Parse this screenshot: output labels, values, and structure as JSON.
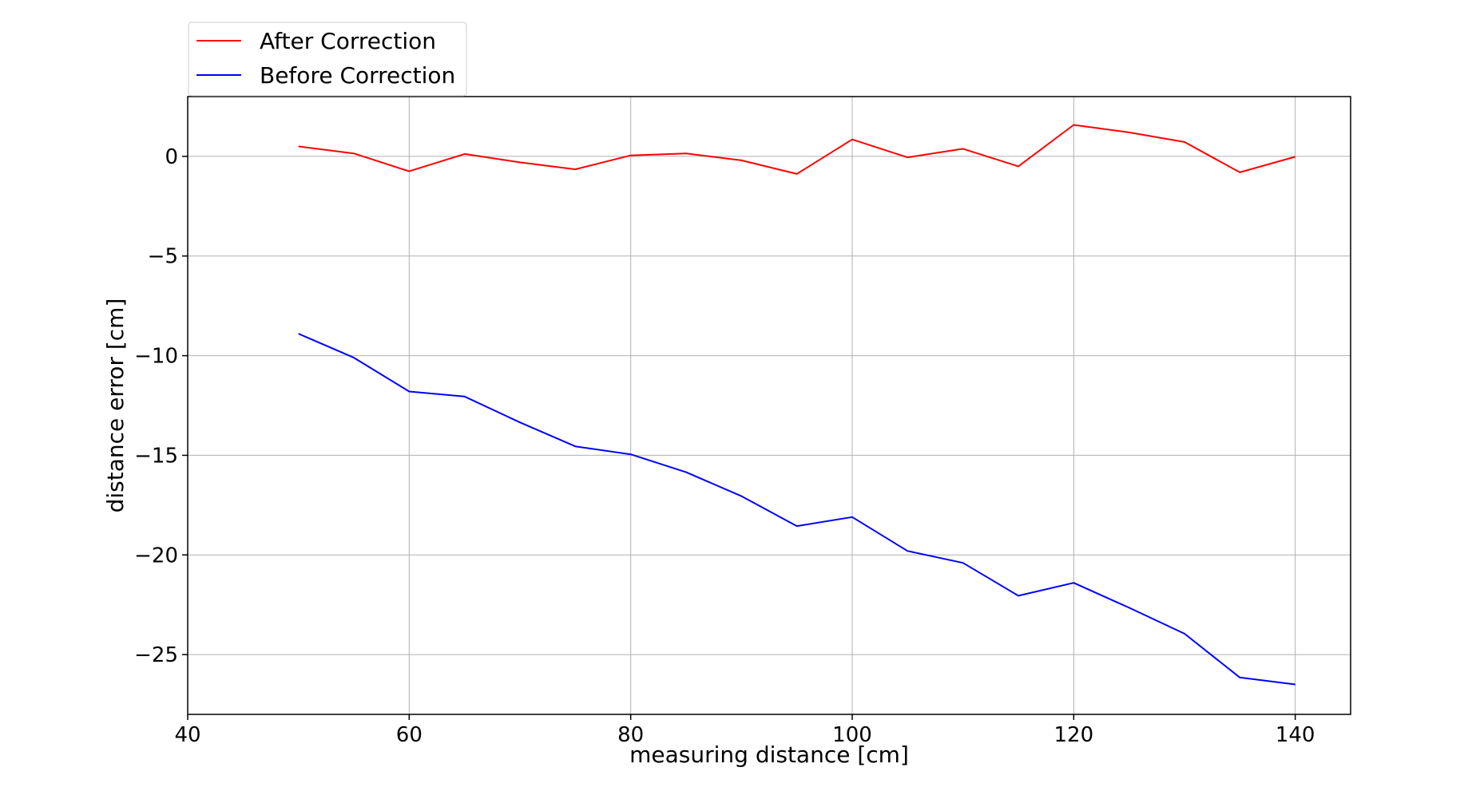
{
  "chart_data": {
    "type": "line",
    "title": "",
    "xlabel": "measuring distance [cm]",
    "ylabel": "distance error [cm]",
    "xlim": [
      40,
      145
    ],
    "ylim": [
      -28,
      3
    ],
    "xticks": [
      40,
      60,
      80,
      100,
      120,
      140
    ],
    "xtick_labels": [
      "40",
      "60",
      "80",
      "100",
      "120",
      "140"
    ],
    "yticks": [
      0,
      -5,
      -10,
      -15,
      -20,
      -25
    ],
    "ytick_labels": [
      "0",
      "−5",
      "−10",
      "−15",
      "−20",
      "−25"
    ],
    "grid": true,
    "legend_position": "top-left (above plot)",
    "x": [
      50,
      55,
      60,
      65,
      70,
      75,
      80,
      85,
      90,
      95,
      100,
      105,
      110,
      115,
      120,
      125,
      130,
      135,
      140
    ],
    "series": [
      {
        "name": "After Correction",
        "color": "#ff0000",
        "values": [
          0.5,
          0.15,
          -0.75,
          0.12,
          -0.3,
          -0.65,
          0.05,
          0.15,
          -0.2,
          -0.88,
          0.85,
          -0.05,
          0.38,
          -0.5,
          1.58,
          1.2,
          0.72,
          -0.8,
          -0.02
        ]
      },
      {
        "name": "Before Correction",
        "color": "#0000ff",
        "values": [
          -8.9,
          -10.1,
          -11.8,
          -12.05,
          -13.35,
          -14.55,
          -14.95,
          -15.85,
          -17.05,
          -18.55,
          -18.1,
          -19.8,
          -20.4,
          -22.05,
          -21.4,
          -22.65,
          -23.95,
          -26.15,
          -26.5
        ]
      }
    ]
  }
}
